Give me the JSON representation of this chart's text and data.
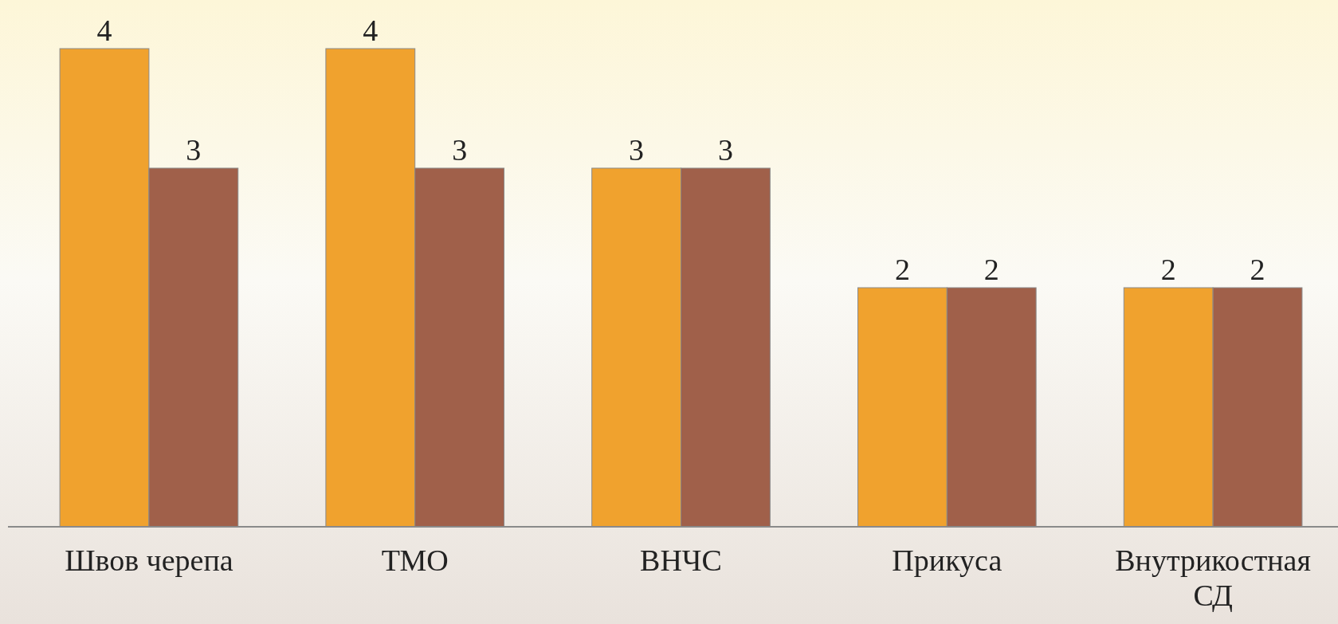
{
  "chart_data": {
    "type": "bar",
    "categories": [
      "Швов черепа",
      "ТМО",
      "ВНЧС",
      "Прикуса",
      "Внутрикостная СД"
    ],
    "series": [
      {
        "color": "#f0a22e",
        "values": [
          4,
          4,
          3,
          2,
          2
        ]
      },
      {
        "color": "#a0604a",
        "values": [
          3,
          3,
          3,
          2,
          2
        ]
      }
    ],
    "data_labels": true
  }
}
